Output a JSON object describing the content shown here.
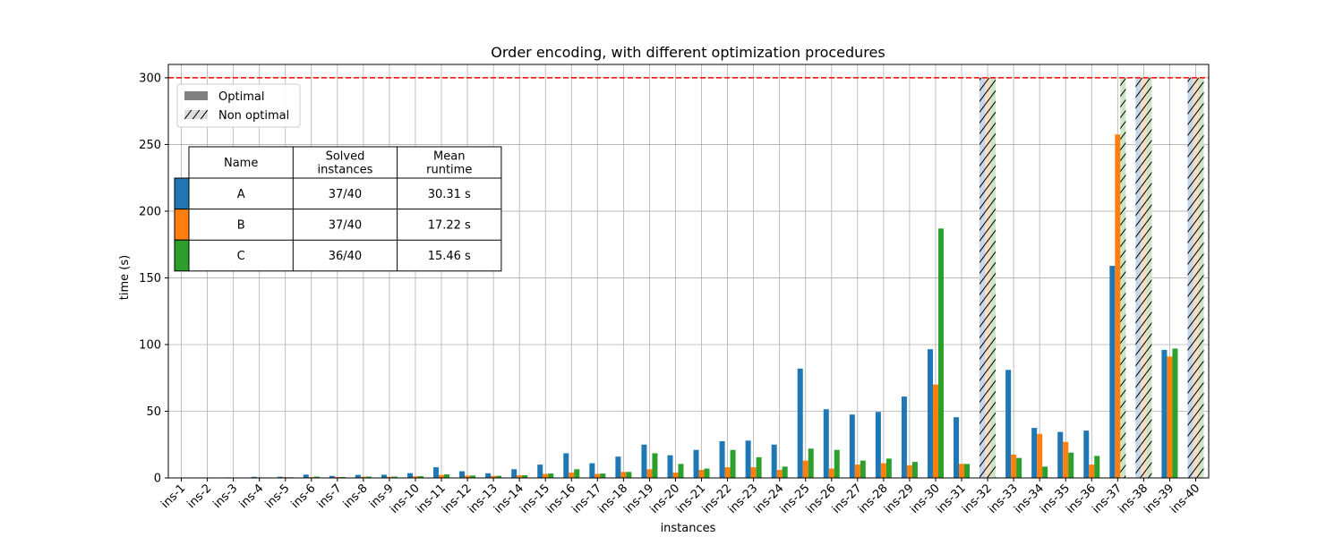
{
  "chart_data": {
    "type": "bar",
    "title": "Order encoding, with different optimization procedures",
    "xlabel": "instances",
    "ylabel": "time (s)",
    "ylim": [
      0,
      310
    ],
    "yticks": [
      0,
      50,
      100,
      150,
      200,
      250,
      300
    ],
    "grid": true,
    "timeout_line": 300,
    "categories": [
      "ins-1",
      "ins-2",
      "ins-3",
      "ins-4",
      "ins-5",
      "ins-6",
      "ins-7",
      "ins-8",
      "ins-9",
      "ins-10",
      "ins-11",
      "ins-12",
      "ins-13",
      "ins-14",
      "ins-15",
      "ins-16",
      "ins-17",
      "ins-18",
      "ins-19",
      "ins-20",
      "ins-21",
      "ins-22",
      "ins-23",
      "ins-24",
      "ins-25",
      "ins-26",
      "ins-27",
      "ins-28",
      "ins-29",
      "ins-30",
      "ins-31",
      "ins-32",
      "ins-33",
      "ins-34",
      "ins-35",
      "ins-36",
      "ins-37",
      "ins-38",
      "ins-39",
      "ins-40"
    ],
    "series": [
      {
        "name": "A",
        "color": "#1f77b4",
        "light_color": "#c5d8ea",
        "values": [
          0.3,
          0.3,
          0.4,
          0.8,
          0.9,
          2.5,
          1.5,
          2.3,
          2.4,
          3.6,
          8.0,
          5.0,
          3.5,
          6.5,
          10.0,
          18.5,
          11.0,
          16.0,
          25.0,
          17.0,
          21.0,
          27.5,
          28.0,
          25.0,
          82.0,
          51.5,
          47.5,
          49.5,
          61.0,
          96.5,
          45.5,
          300,
          81.0,
          37.5,
          34.5,
          35.5,
          159.0,
          300,
          96.0,
          300
        ],
        "optimal": [
          true,
          true,
          true,
          true,
          true,
          true,
          true,
          true,
          true,
          true,
          true,
          true,
          true,
          true,
          true,
          true,
          true,
          true,
          true,
          true,
          true,
          true,
          true,
          true,
          true,
          true,
          true,
          true,
          true,
          true,
          true,
          false,
          true,
          true,
          true,
          true,
          true,
          false,
          true,
          false
        ]
      },
      {
        "name": "B",
        "color": "#ff7f0e",
        "light_color": "#f5dcc3",
        "values": [
          0.2,
          0.3,
          0.3,
          0.5,
          0.6,
          0.6,
          0.7,
          0.9,
          0.9,
          1.2,
          2.2,
          1.7,
          1.5,
          2.0,
          3.0,
          4.0,
          3.0,
          4.5,
          6.5,
          4.0,
          6.0,
          8.0,
          8.0,
          6.0,
          13.0,
          7.0,
          10.0,
          11.0,
          9.5,
          70.0,
          10.5,
          300,
          17.5,
          33.0,
          27.0,
          10.0,
          257.5,
          300,
          91.0,
          300
        ],
        "optimal": [
          true,
          true,
          true,
          true,
          true,
          true,
          true,
          true,
          true,
          true,
          true,
          true,
          true,
          true,
          true,
          true,
          true,
          true,
          true,
          true,
          true,
          true,
          true,
          true,
          true,
          true,
          true,
          true,
          true,
          true,
          true,
          false,
          true,
          true,
          true,
          true,
          true,
          false,
          true,
          false
        ]
      },
      {
        "name": "C",
        "color": "#2ca02c",
        "light_color": "#cde4c6",
        "values": [
          0.2,
          0.2,
          0.3,
          0.4,
          0.5,
          1.0,
          0.7,
          1.0,
          1.0,
          1.3,
          2.7,
          1.8,
          1.6,
          2.0,
          3.3,
          6.5,
          3.3,
          4.5,
          18.5,
          10.5,
          7.0,
          21.0,
          15.5,
          8.5,
          22.0,
          21.0,
          13.0,
          14.5,
          12.0,
          187.0,
          10.5,
          300,
          15.0,
          8.5,
          19.0,
          16.5,
          300,
          300,
          97.0,
          300
        ],
        "optimal": [
          true,
          true,
          true,
          true,
          true,
          true,
          true,
          true,
          true,
          true,
          true,
          true,
          true,
          true,
          true,
          true,
          true,
          true,
          true,
          true,
          true,
          true,
          true,
          true,
          true,
          true,
          true,
          true,
          true,
          true,
          true,
          false,
          true,
          true,
          true,
          true,
          false,
          false,
          true,
          false
        ]
      }
    ],
    "legend": {
      "placement": "top-left",
      "items": [
        {
          "label": "Optimal",
          "style": "solid",
          "color": "#808080"
        },
        {
          "label": "Non optimal",
          "style": "hatched",
          "color": "#dcdcdc"
        }
      ]
    },
    "table": {
      "headers": [
        "Name",
        "Solved\ninstances",
        "Mean\nruntime"
      ],
      "rows": [
        {
          "color": "#1f77b4",
          "cells": [
            "A",
            "37/40",
            "30.31 s"
          ]
        },
        {
          "color": "#ff7f0e",
          "cells": [
            "B",
            "37/40",
            "17.22 s"
          ]
        },
        {
          "color": "#2ca02c",
          "cells": [
            "C",
            "36/40",
            "15.46 s"
          ]
        }
      ]
    }
  }
}
